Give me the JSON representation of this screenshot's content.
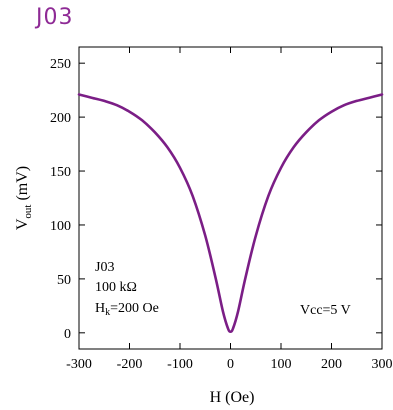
{
  "page_title": "J03",
  "chart_data": {
    "type": "line",
    "title": "",
    "xlabel": "H (Oe)",
    "ylabel_main": "V",
    "ylabel_sub": "out",
    "ylabel_unit": " (mV)",
    "xlim": [
      -300,
      300
    ],
    "ylim": [
      -15,
      265
    ],
    "xticks": [
      -300,
      -200,
      -100,
      0,
      100,
      200,
      300
    ],
    "xtick_labels": [
      "-300",
      "-200",
      "-100",
      "0",
      "100",
      "200",
      "300"
    ],
    "yticks": [
      0,
      50,
      100,
      150,
      200,
      250
    ],
    "ytick_labels": [
      "0",
      "50",
      "100",
      "150",
      "200",
      "250"
    ],
    "grid": false,
    "series": [
      {
        "color": "#7b1e86",
        "x": [
          -300,
          -275,
          -250,
          -225,
          -200,
          -175,
          -150,
          -125,
          -100,
          -75,
          -50,
          -30,
          -15,
          -5,
          0,
          5,
          15,
          30,
          50,
          75,
          100,
          125,
          150,
          175,
          200,
          225,
          250,
          275,
          300
        ],
        "y": [
          221,
          218,
          215,
          211,
          205,
          197,
          186,
          172,
          153,
          127,
          90,
          52,
          20,
          4,
          1,
          4,
          20,
          52,
          90,
          127,
          153,
          172,
          186,
          197,
          205,
          211,
          215,
          218,
          221
        ]
      }
    ],
    "annotations": {
      "sample": "J03",
      "resistance": "100 kΩ",
      "hk_main": "H",
      "hk_sub": "k",
      "hk_rest": "=200 Oe",
      "vcc": "Vcc=5 V"
    }
  }
}
